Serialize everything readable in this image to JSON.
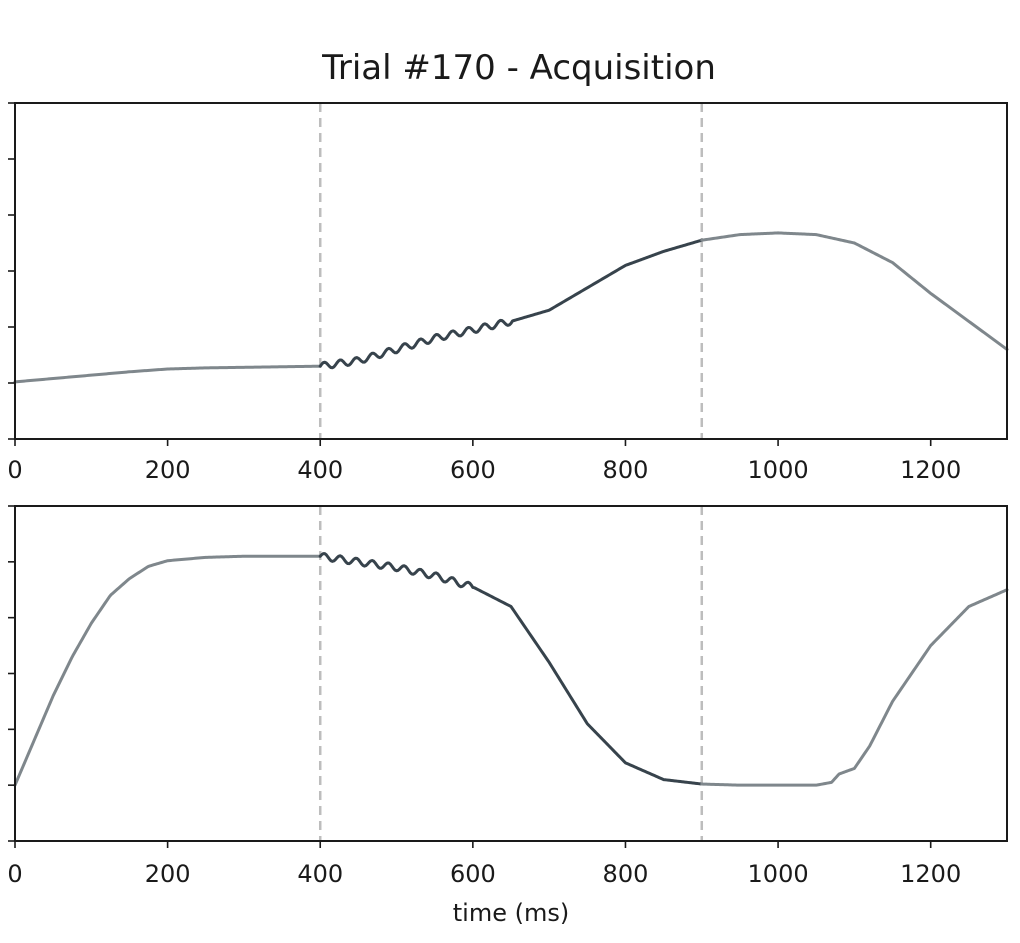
{
  "chart_data": {
    "type": "line",
    "title": "Trial #170 - Acquisition",
    "xlabel": "time (ms)",
    "xlim": [
      0,
      1300
    ],
    "xticks": [
      0,
      200,
      400,
      600,
      800,
      1000,
      1200
    ],
    "xtick_labels": [
      "0",
      "200",
      "400",
      "600",
      "800",
      "1000",
      "1200"
    ],
    "vertical_markers": [
      400,
      900
    ],
    "colors": {
      "outside": "#7f878c",
      "inside": "#37434c",
      "marker": "#bdbdbd"
    },
    "panels": [
      {
        "ylim": [
          0,
          6
        ],
        "yticks": [
          0,
          1,
          2,
          3,
          4,
          5,
          6
        ],
        "series": [
          {
            "x": [
              0,
              50,
              100,
              150,
              200,
              250,
              300,
              350,
              400,
              450,
              500,
              550,
              600,
              650,
              700,
              750,
              800,
              850,
              900,
              950,
              1000,
              1050,
              1100,
              1150,
              1200,
              1250,
              1300
            ],
            "y": [
              1.02,
              1.08,
              1.14,
              1.2,
              1.25,
              1.27,
              1.28,
              1.29,
              1.3,
              1.4,
              1.6,
              1.8,
              1.95,
              2.1,
              2.3,
              2.7,
              3.1,
              3.35,
              3.55,
              3.65,
              3.68,
              3.65,
              3.5,
              3.15,
              2.6,
              2.1,
              1.6
            ],
            "ripple_range": [
              400,
              650
            ]
          }
        ]
      },
      {
        "ylim": [
          0,
          6
        ],
        "yticks": [
          0,
          1,
          2,
          3,
          4,
          5,
          6
        ],
        "series": [
          {
            "x": [
              0,
              25,
              50,
              75,
              100,
              125,
              150,
              175,
              200,
              250,
              300,
              350,
              400,
              450,
              500,
              550,
              600,
              650,
              700,
              750,
              800,
              850,
              900,
              950,
              1000,
              1050,
              1070,
              1080,
              1100,
              1120,
              1150,
              1200,
              1250,
              1300
            ],
            "y": [
              1.0,
              1.8,
              2.6,
              3.3,
              3.9,
              4.4,
              4.7,
              4.92,
              5.02,
              5.08,
              5.1,
              5.1,
              5.1,
              5.0,
              4.9,
              4.75,
              4.55,
              4.2,
              3.2,
              2.1,
              1.4,
              1.1,
              1.02,
              1.0,
              1.0,
              1.0,
              1.05,
              1.2,
              1.3,
              1.7,
              2.5,
              3.5,
              4.2,
              4.5
            ],
            "ripple_range": [
              400,
              600
            ]
          }
        ]
      }
    ]
  }
}
